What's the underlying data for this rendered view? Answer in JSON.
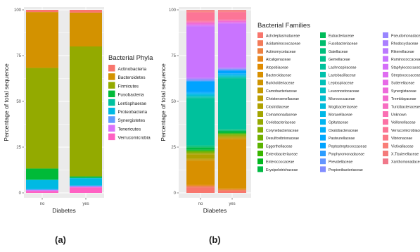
{
  "chart_data": [
    {
      "id": "a",
      "type": "bar",
      "stacked": true,
      "panel_label": "(a)",
      "categories": [
        "no",
        "yes"
      ],
      "xlabel": "Diabetes",
      "ylabel": "Percentage of total sequence",
      "ylim": [
        0,
        100
      ],
      "yticks": [
        "0",
        "25",
        "50",
        "75",
        "100"
      ],
      "grid": true,
      "legend_title": "Bacterial Phyla",
      "legend_position": "right",
      "series": [
        {
          "name": "Verrucomicrobia",
          "color": "#FF61C3",
          "values": [
            1,
            3
          ]
        },
        {
          "name": "Tenericutes",
          "color": "#DB72FB",
          "values": [
            0.5,
            0.5
          ]
        },
        {
          "name": "Synergistetes",
          "color": "#619CFF",
          "values": [
            0.5,
            0.5
          ]
        },
        {
          "name": "Proteobacteria",
          "color": "#00B9E3",
          "values": [
            5,
            4
          ]
        },
        {
          "name": "Lentisphaerae",
          "color": "#00C19F",
          "values": [
            0.3,
            0.3
          ]
        },
        {
          "name": "Fusobacteria",
          "color": "#00BA38",
          "values": [
            6,
            0.7
          ]
        },
        {
          "name": "Firmicutes",
          "color": "#93AA00",
          "values": [
            55,
            71
          ]
        },
        {
          "name": "Bacteroidetes",
          "color": "#D39200",
          "values": [
            30.5,
            18.5
          ]
        },
        {
          "name": "Actinobacteria",
          "color": "#F8766D",
          "values": [
            1.2,
            1.5
          ]
        }
      ]
    },
    {
      "id": "b",
      "type": "bar",
      "stacked": true,
      "panel_label": "(b)",
      "categories": [
        "no",
        "yes"
      ],
      "xlabel": "Diabetes",
      "ylabel": "Percentage of total sequence",
      "ylim": [
        0,
        100
      ],
      "yticks": [
        "0",
        "25",
        "50",
        "75",
        "100"
      ],
      "grid": true,
      "legend_title": "Bacterial Families",
      "legend_position": "right",
      "series": [
        {
          "name": "Acholeplasmataceae",
          "color": "#F8766D",
          "values": [
            2.5,
            1
          ]
        },
        {
          "name": "Acidaminococcaceae",
          "color": "#F37B59",
          "values": [
            0.5,
            0.5
          ]
        },
        {
          "name": "Actinomycetaceae",
          "color": "#ED8141",
          "values": [
            0.3,
            0.3
          ]
        },
        {
          "name": "Alcaligenaceae",
          "color": "#E7861B",
          "values": [
            0.3,
            0.3
          ]
        },
        {
          "name": "Atopobiaceae",
          "color": "#E08B00",
          "values": [
            0.3,
            0.3
          ]
        },
        {
          "name": "Bacteroidaceae",
          "color": "#D89000",
          "values": [
            11,
            27
          ]
        },
        {
          "name": "Burkholderiaceae",
          "color": "#CF9400",
          "values": [
            0.5,
            0.5
          ]
        },
        {
          "name": "Carnobacteriaceae",
          "color": "#C59900",
          "values": [
            0.3,
            0.3
          ]
        },
        {
          "name": "Christensenellaceae",
          "color": "#BB9D00",
          "values": [
            0.3,
            0.3
          ]
        },
        {
          "name": "Clostridiaceae",
          "color": "#AFA100",
          "values": [
            2,
            0.5
          ]
        },
        {
          "name": "Comamonadaceae",
          "color": "#A3A500",
          "values": [
            0.3,
            0.3
          ]
        },
        {
          "name": "Coriobacteriaceae",
          "color": "#95A900",
          "values": [
            0.3,
            0.3
          ]
        },
        {
          "name": "Corynebacteriaceae",
          "color": "#85AD00",
          "values": [
            0.3,
            0.3
          ]
        },
        {
          "name": "Desulfovibrionaceae",
          "color": "#72B000",
          "values": [
            0.3,
            0.3
          ]
        },
        {
          "name": "Eggerthellaceae",
          "color": "#5BB300",
          "values": [
            0.3,
            0.3
          ]
        },
        {
          "name": "Enterobacteriaceae",
          "color": "#39B600",
          "values": [
            0.3,
            0.3
          ]
        },
        {
          "name": "Enterococcaceae",
          "color": "#00B81F",
          "values": [
            0.3,
            0.3
          ]
        },
        {
          "name": "Erysipelotrichaceae",
          "color": "#00BA42",
          "values": [
            1,
            0.8
          ]
        },
        {
          "name": "Eubacteriaceae",
          "color": "#00BC59",
          "values": [
            0.3,
            0.3
          ]
        },
        {
          "name": "Fusobacteriaceae",
          "color": "#00BD6D",
          "values": [
            0.3,
            0.3
          ]
        },
        {
          "name": "Gaiellaceae",
          "color": "#00BF7D",
          "values": [
            0.3,
            0.3
          ]
        },
        {
          "name": "Gemellaceae",
          "color": "#00C08D",
          "values": [
            0.3,
            0.3
          ]
        },
        {
          "name": "Lachnospiraceae",
          "color": "#00C19C",
          "values": [
            22,
            28
          ]
        },
        {
          "name": "Lactobacillaceae",
          "color": "#00C1AA",
          "values": [
            0.3,
            0.3
          ]
        },
        {
          "name": "Leptospiraceae",
          "color": "#00C0B8",
          "values": [
            0.3,
            0.3
          ]
        },
        {
          "name": "Leuconostocaceae",
          "color": "#00BFC4",
          "values": [
            0.3,
            0.3
          ]
        },
        {
          "name": "Micrococcaceae",
          "color": "#00BDD0",
          "values": [
            0.3,
            0.3
          ]
        },
        {
          "name": "Mogibacteriaceae",
          "color": "#00BBDC",
          "values": [
            0.3,
            0.3
          ]
        },
        {
          "name": "Moraxellaceae",
          "color": "#00B8E7",
          "values": [
            0.3,
            0.3
          ]
        },
        {
          "name": "Opitutaceae",
          "color": "#00B4F0",
          "values": [
            0.3,
            0.3
          ]
        },
        {
          "name": "Oxalobacteraceae",
          "color": "#00AFF8",
          "values": [
            0.3,
            0.3
          ]
        },
        {
          "name": "Pasteurellaceae",
          "color": "#00A9FF",
          "values": [
            0.3,
            0.3
          ]
        },
        {
          "name": "Peptostreptococcaceae",
          "color": "#00A3FF",
          "values": [
            5,
            1.5
          ]
        },
        {
          "name": "Porphyromonadaceae",
          "color": "#2B9CFF",
          "values": [
            0.3,
            0.3
          ]
        },
        {
          "name": "Prevotellaceae",
          "color": "#6395FF",
          "values": [
            0.3,
            0.3
          ]
        },
        {
          "name": "Propionibacteriaceae",
          "color": "#818DFF",
          "values": [
            0.3,
            0.3
          ]
        },
        {
          "name": "Pseudomonadaceae",
          "color": "#9986FF",
          "values": [
            0.3,
            0.3
          ]
        },
        {
          "name": "Rhodocyclaceae",
          "color": "#AB7FFF",
          "values": [
            0.3,
            0.3
          ]
        },
        {
          "name": "Rikenellaceae",
          "color": "#BB79FF",
          "values": [
            0.3,
            0.3
          ]
        },
        {
          "name": "Ruminococcaceae",
          "color": "#C974FF",
          "values": [
            24,
            24
          ]
        },
        {
          "name": "Staphylococcaceae",
          "color": "#D56FF9",
          "values": [
            0.3,
            0.3
          ]
        },
        {
          "name": "Streptococcaceae",
          "color": "#DF6CF1",
          "values": [
            0.3,
            0.3
          ]
        },
        {
          "name": "Sutterellaceae",
          "color": "#E76BE7",
          "values": [
            0.3,
            0.3
          ]
        },
        {
          "name": "Synergistaceae",
          "color": "#EE6ADB",
          "values": [
            0.3,
            0.3
          ]
        },
        {
          "name": "Tremblayaceae",
          "color": "#F36BCF",
          "values": [
            0.3,
            0.3
          ]
        },
        {
          "name": "Turicibacteraceae",
          "color": "#F76DC1",
          "values": [
            0.3,
            0.3
          ]
        },
        {
          "name": "Unknown",
          "color": "#FA70B3",
          "values": [
            0.3,
            0.3
          ]
        },
        {
          "name": "Veillonellaceae",
          "color": "#FC72A5",
          "values": [
            0.3,
            0.3
          ]
        },
        {
          "name": "Verrucomicrobiaceae",
          "color": "#FC7596",
          "values": [
            4,
            4
          ]
        },
        {
          "name": "Vibrionaceae",
          "color": "#FB7987",
          "values": [
            0.3,
            0.3
          ]
        },
        {
          "name": "Victivallaceae",
          "color": "#F97E77",
          "values": [
            0.3,
            0.3
          ]
        },
        {
          "name": "X.Tissierellaceae",
          "color": "#F47A7A",
          "values": [
            0.3,
            0.3
          ]
        },
        {
          "name": "Xanthomonadaceae",
          "color": "#F0788A",
          "values": [
            0.3,
            0.3
          ]
        }
      ]
    }
  ]
}
